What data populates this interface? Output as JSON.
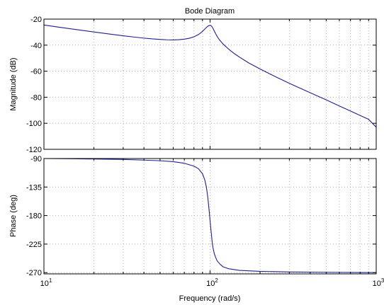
{
  "title": "Bode Diagram",
  "xlabel": "Frequency  (rad/s)",
  "line_color": "#1f1f8f",
  "chart_data": [
    {
      "type": "line",
      "title": "Bode Diagram",
      "xlabel": "",
      "ylabel": "Magnitude (dB)",
      "xscale": "log",
      "xlim": [
        10,
        1000
      ],
      "ylim": [
        -120,
        -20
      ],
      "grid": true,
      "xticks": [
        {
          "base": "10",
          "exp": "1"
        },
        {
          "base": "10",
          "exp": "2"
        },
        {
          "base": "10",
          "exp": "3"
        }
      ],
      "yticks": [
        "-20",
        "-40",
        "-60",
        "-80",
        "-100",
        "-120"
      ],
      "series": [
        {
          "x": [
            10,
            12,
            15,
            20,
            25,
            30,
            35,
            40,
            45,
            50,
            55,
            60,
            65,
            70,
            75,
            80,
            85,
            88,
            90,
            92,
            94,
            96,
            98,
            100,
            101,
            102,
            103,
            104,
            106,
            108,
            110,
            112,
            115,
            120,
            130,
            140,
            150,
            170,
            200,
            250,
            300,
            400,
            500,
            600,
            700,
            800,
            900,
            1000
          ],
          "y": [
            -24.5,
            -26.0,
            -27.7,
            -29.9,
            -31.5,
            -32.8,
            -33.8,
            -34.6,
            -35.2,
            -35.6,
            -35.9,
            -36.0,
            -35.8,
            -35.4,
            -34.7,
            -33.6,
            -31.9,
            -30.5,
            -29.4,
            -28.2,
            -27.0,
            -25.9,
            -25.1,
            -24.8,
            -24.9,
            -25.4,
            -26.1,
            -27.0,
            -29.1,
            -31.2,
            -33.0,
            -34.6,
            -36.6,
            -39.2,
            -43.3,
            -46.5,
            -49.1,
            -53.5,
            -58.3,
            -64.5,
            -69.3,
            -76.5,
            -82.0,
            -86.7,
            -90.6,
            -94.0,
            -97.0,
            -103.0
          ]
        }
      ]
    },
    {
      "type": "line",
      "title": "",
      "xlabel": "Frequency  (rad/s)",
      "ylabel": "Phase (deg)",
      "xscale": "log",
      "xlim": [
        10,
        1000
      ],
      "ylim": [
        -272,
        -90
      ],
      "grid": true,
      "xticks": [
        {
          "base": "10",
          "exp": "1"
        },
        {
          "base": "10",
          "exp": "2"
        },
        {
          "base": "10",
          "exp": "3"
        }
      ],
      "yticks": [
        "-90",
        "-135",
        "-180",
        "-225",
        "-270"
      ],
      "series": [
        {
          "x": [
            10,
            15,
            20,
            30,
            40,
            50,
            60,
            70,
            80,
            85,
            90,
            93,
            95,
            97,
            98,
            99,
            100,
            101,
            102,
            103,
            104,
            106,
            108,
            110,
            115,
            120,
            130,
            150,
            200,
            300,
            500,
            1000
          ],
          "y": [
            -90,
            -90.3,
            -90.8,
            -91.5,
            -92.5,
            -93.5,
            -95,
            -97.5,
            -102,
            -106,
            -114,
            -124,
            -135,
            -152,
            -164,
            -175,
            -188,
            -200,
            -211,
            -222,
            -230,
            -240,
            -246,
            -251,
            -257,
            -261,
            -264,
            -266.5,
            -268,
            -269,
            -269.5,
            -270
          ]
        }
      ]
    }
  ]
}
